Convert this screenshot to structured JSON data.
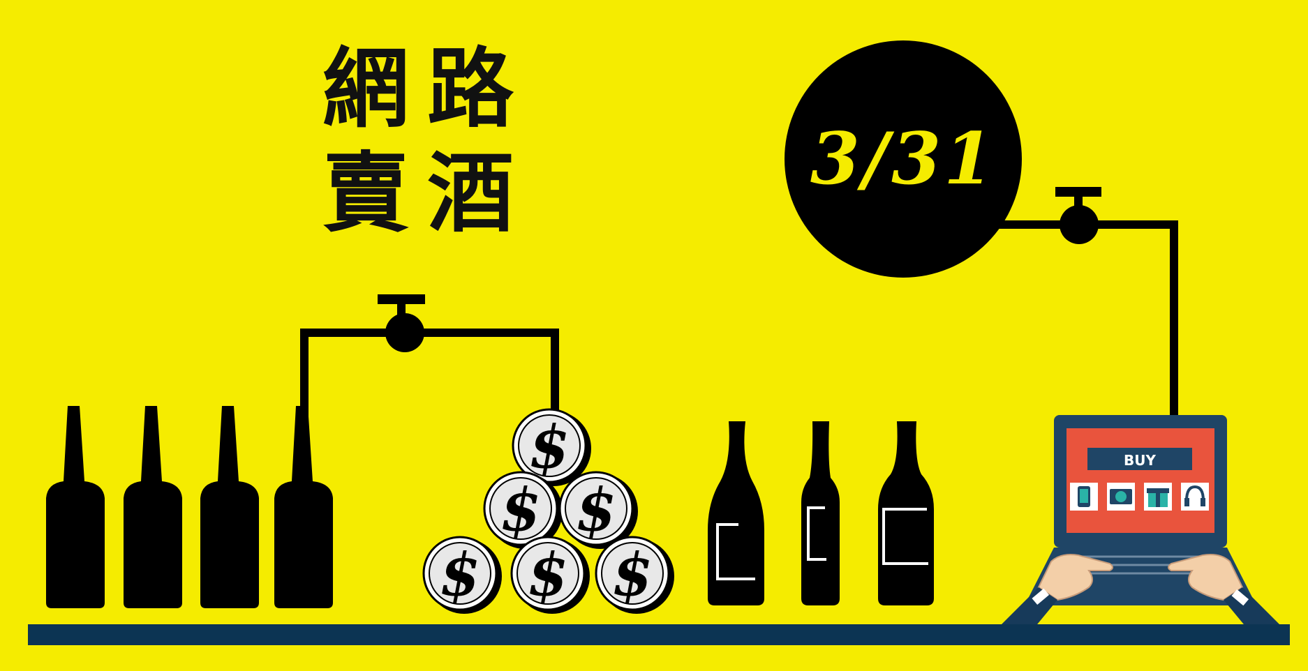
{
  "headline": {
    "line1": [
      "網",
      "路"
    ],
    "line2": [
      "賣",
      "酒"
    ]
  },
  "date_badge": {
    "text": "3/31"
  },
  "coins": {
    "symbol": "$",
    "count": 6
  },
  "laptop": {
    "screen_button": "BUY",
    "product_icons": [
      "phone-icon",
      "camera-icon",
      "gift-icon",
      "headphones-icon"
    ]
  },
  "colors": {
    "background": "#f5ec00",
    "ink": "#000000",
    "shelf": "#0c3453",
    "screen": "#e9543d",
    "laptop_body": "#1f4566",
    "icon_tile": "#ffffff"
  },
  "bottles_left": {
    "count": 4
  },
  "bottles_right": {
    "count": 3
  }
}
